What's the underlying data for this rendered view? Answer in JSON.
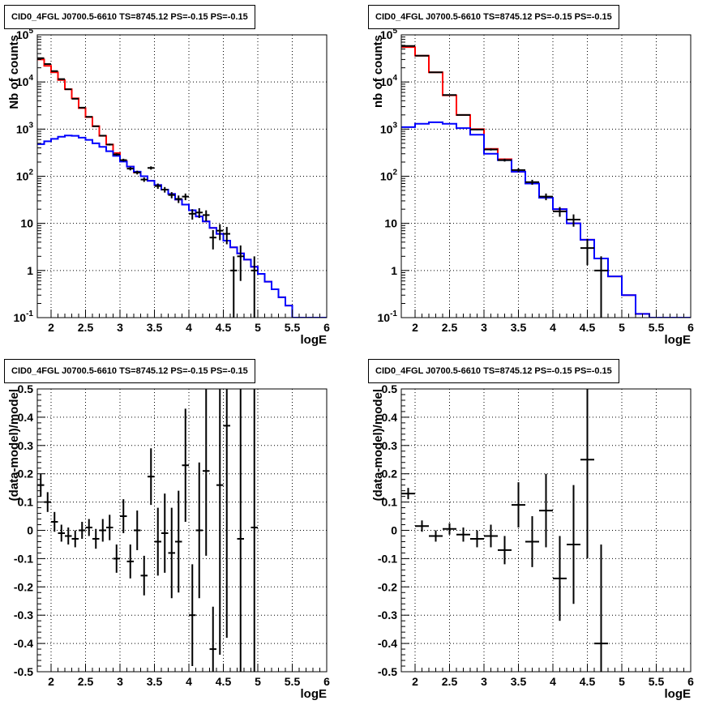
{
  "chart_data": [
    {
      "type": "histogram",
      "panel": "top-left",
      "title": "CID0_4FGL J0700.5-6610 TS=8745.12 PS=-0.15 PS=-0.15",
      "xlabel": "logE",
      "ylabel": "Nb of counts",
      "xlim": [
        1.8,
        6.0
      ],
      "ylim": [
        0.1,
        100000
      ],
      "yscale": "log",
      "xticks": [
        "2",
        "2.5",
        "3",
        "3.5",
        "4",
        "4.5",
        "5",
        "5.5",
        "6"
      ],
      "xtick_values": [
        2,
        2.5,
        3,
        3.5,
        4,
        4.5,
        5,
        5.5,
        6
      ],
      "yticks": [
        "10^-1",
        "1",
        "10",
        "10^2",
        "10^3",
        "10^4",
        "10^5"
      ],
      "ytick_values": [
        0.1,
        1,
        10,
        100,
        1000,
        10000,
        100000
      ],
      "grid": true,
      "colors": {
        "total": "#ff0000",
        "source": "#0000ff",
        "data": "#000000"
      },
      "bin_edges": [
        1.8,
        1.9,
        2.0,
        2.1,
        2.2,
        2.3,
        2.4,
        2.5,
        2.6,
        2.7,
        2.8,
        2.9,
        3.0,
        3.1,
        3.2,
        3.3,
        3.4,
        3.5,
        3.6,
        3.7,
        3.8,
        3.9,
        4.0,
        4.1,
        4.2,
        4.3,
        4.4,
        4.5,
        4.6,
        4.7,
        4.8,
        4.9,
        5.0,
        5.1,
        5.2,
        5.3,
        5.4,
        5.5,
        5.6,
        5.7,
        5.8,
        5.9,
        6.0
      ],
      "series": [
        {
          "values": [
            30000,
            22000,
            16000,
            11000,
            7000,
            4500,
            2800,
            1800,
            1150,
            720,
            470,
            310,
            210,
            160,
            120,
            100,
            80,
            65,
            52,
            42,
            32,
            25,
            19,
            14,
            11,
            8,
            6,
            4.3,
            3.1,
            2.3,
            1.7,
            1.2,
            0.85,
            0.58,
            0.4,
            0.27,
            0.18,
            0.1,
            0.1,
            0.1,
            0.1,
            0.1
          ]
        },
        {
          "values": [
            480,
            550,
            620,
            690,
            730,
            720,
            660,
            590,
            500,
            420,
            340,
            270,
            205,
            160,
            125,
            100,
            80,
            65,
            52,
            42,
            32,
            25,
            19,
            14,
            11,
            8,
            6,
            4.3,
            3.1,
            2.3,
            1.7,
            1.2,
            0.85,
            0.58,
            0.4,
            0.27,
            0.18,
            0.1,
            0.1,
            0.1,
            0.1,
            0.1
          ]
        }
      ],
      "points": [
        {
          "x": 1.85,
          "y": 32000,
          "yerr": 180,
          "xerr": 0.05
        },
        {
          "x": 1.95,
          "y": 24000,
          "yerr": 155,
          "xerr": 0.05
        },
        {
          "x": 2.05,
          "y": 17000,
          "yerr": 130,
          "xerr": 0.05
        },
        {
          "x": 2.15,
          "y": 11500,
          "yerr": 107,
          "xerr": 0.05
        },
        {
          "x": 2.25,
          "y": 7000,
          "yerr": 84,
          "xerr": 0.05
        },
        {
          "x": 2.35,
          "y": 4400,
          "yerr": 66,
          "xerr": 0.05
        },
        {
          "x": 2.45,
          "y": 2850,
          "yerr": 53,
          "xerr": 0.05
        },
        {
          "x": 2.55,
          "y": 1820,
          "yerr": 43,
          "xerr": 0.05
        },
        {
          "x": 2.65,
          "y": 1150,
          "yerr": 34,
          "xerr": 0.05
        },
        {
          "x": 2.75,
          "y": 725,
          "yerr": 27,
          "xerr": 0.05
        },
        {
          "x": 2.85,
          "y": 470,
          "yerr": 22,
          "xerr": 0.05
        },
        {
          "x": 2.95,
          "y": 290,
          "yerr": 17,
          "xerr": 0.05
        },
        {
          "x": 3.05,
          "y": 220,
          "yerr": 15,
          "xerr": 0.05
        },
        {
          "x": 3.15,
          "y": 145,
          "yerr": 12,
          "xerr": 0.05
        },
        {
          "x": 3.25,
          "y": 120,
          "yerr": 11,
          "xerr": 0.05
        },
        {
          "x": 3.35,
          "y": 85,
          "yerr": 9,
          "xerr": 0.05
        },
        {
          "x": 3.45,
          "y": 150,
          "yerr": 12,
          "xerr": 0.05
        },
        {
          "x": 3.55,
          "y": 62,
          "yerr": 8,
          "xerr": 0.05
        },
        {
          "x": 3.65,
          "y": 52,
          "yerr": 7,
          "xerr": 0.05
        },
        {
          "x": 3.75,
          "y": 40,
          "yerr": 6,
          "xerr": 0.05
        },
        {
          "x": 3.85,
          "y": 33,
          "yerr": 6,
          "xerr": 0.05
        },
        {
          "x": 3.95,
          "y": 37,
          "yerr": 6,
          "xerr": 0.05
        },
        {
          "x": 4.05,
          "y": 16,
          "yerr": 4,
          "xerr": 0.05
        },
        {
          "x": 4.15,
          "y": 17,
          "yerr": 4,
          "xerr": 0.05
        },
        {
          "x": 4.25,
          "y": 15,
          "yerr": 3.9,
          "xerr": 0.05
        },
        {
          "x": 4.35,
          "y": 5,
          "yerr": 2.2,
          "xerr": 0.05
        },
        {
          "x": 4.45,
          "y": 7,
          "yerr": 2.6,
          "xerr": 0.05
        },
        {
          "x": 4.55,
          "y": 6,
          "yerr": 2.4,
          "xerr": 0.05
        },
        {
          "x": 4.65,
          "y": 1,
          "yerr": 1,
          "xerr": 0.05
        },
        {
          "x": 4.75,
          "y": 2,
          "yerr": 1.4,
          "xerr": 0.05
        },
        {
          "x": 4.95,
          "y": 1,
          "yerr": 1,
          "xerr": 0.05
        }
      ]
    },
    {
      "type": "histogram",
      "panel": "top-right",
      "title": "CID0_4FGL J0700.5-6610 TS=8745.12 PS=-0.15 PS=-0.15",
      "xlabel": "logE",
      "ylabel": "nb of counts",
      "xlim": [
        1.8,
        6.0
      ],
      "ylim": [
        0.1,
        100000
      ],
      "yscale": "log",
      "xticks": [
        "2",
        "2.5",
        "3",
        "3.5",
        "4",
        "4.5",
        "5",
        "5.5",
        "6"
      ],
      "xtick_values": [
        2,
        2.5,
        3,
        3.5,
        4,
        4.5,
        5,
        5.5,
        6
      ],
      "yticks": [
        "10^-1",
        "1",
        "10",
        "10^2",
        "10^3",
        "10^4",
        "10^5"
      ],
      "ytick_values": [
        0.1,
        1,
        10,
        100,
        1000,
        10000,
        100000
      ],
      "grid": true,
      "colors": {
        "total": "#ff0000",
        "source": "#0000ff",
        "data": "#000000"
      },
      "bin_edges": [
        1.8,
        2.0,
        2.2,
        2.4,
        2.6,
        2.8,
        3.0,
        3.2,
        3.4,
        3.6,
        3.8,
        4.0,
        4.2,
        4.4,
        4.6,
        4.8,
        5.0,
        5.2,
        5.4,
        5.6,
        5.8,
        6.0
      ],
      "series": [
        {
          "values": [
            55000,
            36000,
            16000,
            5200,
            2000,
            1000,
            380,
            230,
            125,
            70,
            35,
            20,
            10,
            4.5,
            1.8,
            0.75,
            0.3,
            0.12,
            0.1,
            0.1,
            0.1
          ]
        },
        {
          "values": [
            1100,
            1300,
            1400,
            1300,
            1050,
            760,
            300,
            220,
            125,
            70,
            35,
            20,
            10,
            4.5,
            1.8,
            0.75,
            0.3,
            0.12,
            0.1,
            0.1,
            0.1
          ]
        }
      ],
      "points": [
        {
          "x": 1.9,
          "y": 58000,
          "yerr": 240,
          "xerr": 0.1
        },
        {
          "x": 2.1,
          "y": 36000,
          "yerr": 190,
          "xerr": 0.1
        },
        {
          "x": 2.3,
          "y": 16000,
          "yerr": 126,
          "xerr": 0.1
        },
        {
          "x": 2.5,
          "y": 5300,
          "yerr": 73,
          "xerr": 0.1
        },
        {
          "x": 2.7,
          "y": 2000,
          "yerr": 45,
          "xerr": 0.1
        },
        {
          "x": 2.9,
          "y": 980,
          "yerr": 31,
          "xerr": 0.1
        },
        {
          "x": 3.1,
          "y": 370,
          "yerr": 19,
          "xerr": 0.1
        },
        {
          "x": 3.3,
          "y": 220,
          "yerr": 15,
          "xerr": 0.1
        },
        {
          "x": 3.5,
          "y": 135,
          "yerr": 12,
          "xerr": 0.1
        },
        {
          "x": 3.7,
          "y": 75,
          "yerr": 9,
          "xerr": 0.1
        },
        {
          "x": 3.9,
          "y": 37,
          "yerr": 6,
          "xerr": 0.1
        },
        {
          "x": 4.1,
          "y": 18,
          "yerr": 4.2,
          "xerr": 0.1
        },
        {
          "x": 4.3,
          "y": 12,
          "yerr": 3.5,
          "xerr": 0.1
        },
        {
          "x": 4.5,
          "y": 3,
          "yerr": 1.7,
          "xerr": 0.1
        },
        {
          "x": 4.7,
          "y": 1,
          "yerr": 1,
          "xerr": 0.1
        }
      ]
    },
    {
      "type": "scatter",
      "panel": "bottom-left",
      "title": "CID0_4FGL J0700.5-6610 TS=8745.12 PS=-0.15 PS=-0.15",
      "xlabel": "logE",
      "ylabel": "(data-model)/model",
      "xlim": [
        1.8,
        6.0
      ],
      "ylim": [
        -0.5,
        0.5
      ],
      "xticks": [
        "2",
        "2.5",
        "3",
        "3.5",
        "4",
        "4.5",
        "5",
        "5.5",
        "6"
      ],
      "xtick_values": [
        2,
        2.5,
        3,
        3.5,
        4,
        4.5,
        5,
        5.5,
        6
      ],
      "yticks": [
        "-0.5",
        "-0.4",
        "-0.3",
        "-0.2",
        "-0.1",
        "0",
        "0.1",
        "0.2",
        "0.3",
        "0.4",
        "0.5"
      ],
      "ytick_values": [
        -0.5,
        -0.4,
        -0.3,
        -0.2,
        -0.1,
        0,
        0.1,
        0.2,
        0.3,
        0.4,
        0.5
      ],
      "grid": true,
      "colors": {
        "data": "#000000"
      },
      "points": [
        {
          "x": 1.85,
          "y": 0.16,
          "yerr": 0.04,
          "xerr": 0.05
        },
        {
          "x": 1.95,
          "y": 0.1,
          "yerr": 0.035,
          "xerr": 0.05
        },
        {
          "x": 2.05,
          "y": 0.03,
          "yerr": 0.035,
          "xerr": 0.05
        },
        {
          "x": 2.15,
          "y": -0.01,
          "yerr": 0.03,
          "xerr": 0.05
        },
        {
          "x": 2.25,
          "y": -0.02,
          "yerr": 0.03,
          "xerr": 0.05
        },
        {
          "x": 2.35,
          "y": -0.03,
          "yerr": 0.03,
          "xerr": 0.05
        },
        {
          "x": 2.45,
          "y": 0.0,
          "yerr": 0.03,
          "xerr": 0.05
        },
        {
          "x": 2.55,
          "y": 0.01,
          "yerr": 0.03,
          "xerr": 0.05
        },
        {
          "x": 2.65,
          "y": -0.03,
          "yerr": 0.035,
          "xerr": 0.05
        },
        {
          "x": 2.75,
          "y": 0.0,
          "yerr": 0.04,
          "xerr": 0.05
        },
        {
          "x": 2.85,
          "y": 0.01,
          "yerr": 0.045,
          "xerr": 0.05
        },
        {
          "x": 2.95,
          "y": -0.1,
          "yerr": 0.05,
          "xerr": 0.05
        },
        {
          "x": 3.05,
          "y": 0.05,
          "yerr": 0.06,
          "xerr": 0.05
        },
        {
          "x": 3.15,
          "y": -0.11,
          "yerr": 0.06,
          "xerr": 0.05
        },
        {
          "x": 3.25,
          "y": 0.0,
          "yerr": 0.07,
          "xerr": 0.05
        },
        {
          "x": 3.35,
          "y": -0.16,
          "yerr": 0.07,
          "xerr": 0.05
        },
        {
          "x": 3.45,
          "y": 0.19,
          "yerr": 0.1,
          "xerr": 0.05
        },
        {
          "x": 3.55,
          "y": -0.04,
          "yerr": 0.12,
          "xerr": 0.05
        },
        {
          "x": 3.65,
          "y": -0.01,
          "yerr": 0.14,
          "xerr": 0.05
        },
        {
          "x": 3.75,
          "y": -0.08,
          "yerr": 0.16,
          "xerr": 0.05
        },
        {
          "x": 3.85,
          "y": -0.04,
          "yerr": 0.18,
          "xerr": 0.05
        },
        {
          "x": 3.95,
          "y": 0.23,
          "yerr": 0.2,
          "xerr": 0.05
        },
        {
          "x": 4.05,
          "y": -0.3,
          "yerr": 0.18,
          "xerr": 0.05
        },
        {
          "x": 4.15,
          "y": 0.0,
          "yerr": 0.24,
          "xerr": 0.05
        },
        {
          "x": 4.25,
          "y": 0.21,
          "yerr": 0.3,
          "xerr": 0.05
        },
        {
          "x": 4.35,
          "y": -0.42,
          "yerr": 0.15,
          "xerr": 0.05
        },
        {
          "x": 4.45,
          "y": 0.16,
          "yerr": 0.6,
          "xerr": 0.05
        },
        {
          "x": 4.55,
          "y": 0.37,
          "yerr": 0.75,
          "xerr": 0.05
        },
        {
          "x": 4.75,
          "y": -0.03,
          "yerr": 1.0,
          "xerr": 0.05
        },
        {
          "x": 4.95,
          "y": 0.01,
          "yerr": 1.0,
          "xerr": 0.05
        }
      ]
    },
    {
      "type": "scatter",
      "panel": "bottom-right",
      "title": "CID0_4FGL J0700.5-6610 TS=8745.12 PS=-0.15 PS=-0.15",
      "xlabel": "logE",
      "ylabel": "(data-model)/model",
      "xlim": [
        1.8,
        6.0
      ],
      "ylim": [
        -0.5,
        0.5
      ],
      "xticks": [
        "2",
        "2.5",
        "3",
        "3.5",
        "4",
        "4.5",
        "5",
        "5.5",
        "6"
      ],
      "xtick_values": [
        2,
        2.5,
        3,
        3.5,
        4,
        4.5,
        5,
        5.5,
        6
      ],
      "yticks": [
        "-0.5",
        "-0.4",
        "-0.3",
        "-0.2",
        "-0.1",
        "0",
        "0.1",
        "0.2",
        "0.3",
        "0.4",
        "0.5"
      ],
      "ytick_values": [
        -0.5,
        -0.4,
        -0.3,
        -0.2,
        -0.1,
        0,
        0.1,
        0.2,
        0.3,
        0.4,
        0.5
      ],
      "grid": true,
      "colors": {
        "data": "#000000"
      },
      "points": [
        {
          "x": 1.9,
          "y": 0.13,
          "yerr": 0.02,
          "xerr": 0.1
        },
        {
          "x": 2.1,
          "y": 0.015,
          "yerr": 0.02,
          "xerr": 0.1
        },
        {
          "x": 2.3,
          "y": -0.02,
          "yerr": 0.02,
          "xerr": 0.1
        },
        {
          "x": 2.5,
          "y": 0.005,
          "yerr": 0.02,
          "xerr": 0.1
        },
        {
          "x": 2.7,
          "y": -0.015,
          "yerr": 0.025,
          "xerr": 0.1
        },
        {
          "x": 2.9,
          "y": -0.03,
          "yerr": 0.03,
          "xerr": 0.1
        },
        {
          "x": 3.1,
          "y": -0.02,
          "yerr": 0.04,
          "xerr": 0.1
        },
        {
          "x": 3.3,
          "y": -0.07,
          "yerr": 0.05,
          "xerr": 0.1
        },
        {
          "x": 3.5,
          "y": 0.09,
          "yerr": 0.08,
          "xerr": 0.1
        },
        {
          "x": 3.7,
          "y": -0.04,
          "yerr": 0.09,
          "xerr": 0.1
        },
        {
          "x": 3.9,
          "y": 0.07,
          "yerr": 0.13,
          "xerr": 0.1
        },
        {
          "x": 4.1,
          "y": -0.17,
          "yerr": 0.15,
          "xerr": 0.1
        },
        {
          "x": 4.3,
          "y": -0.05,
          "yerr": 0.21,
          "xerr": 0.1
        },
        {
          "x": 4.5,
          "y": 0.25,
          "yerr": 0.35,
          "xerr": 0.1
        },
        {
          "x": 4.7,
          "y": -0.4,
          "yerr": 0.35,
          "xerr": 0.1
        }
      ]
    }
  ]
}
